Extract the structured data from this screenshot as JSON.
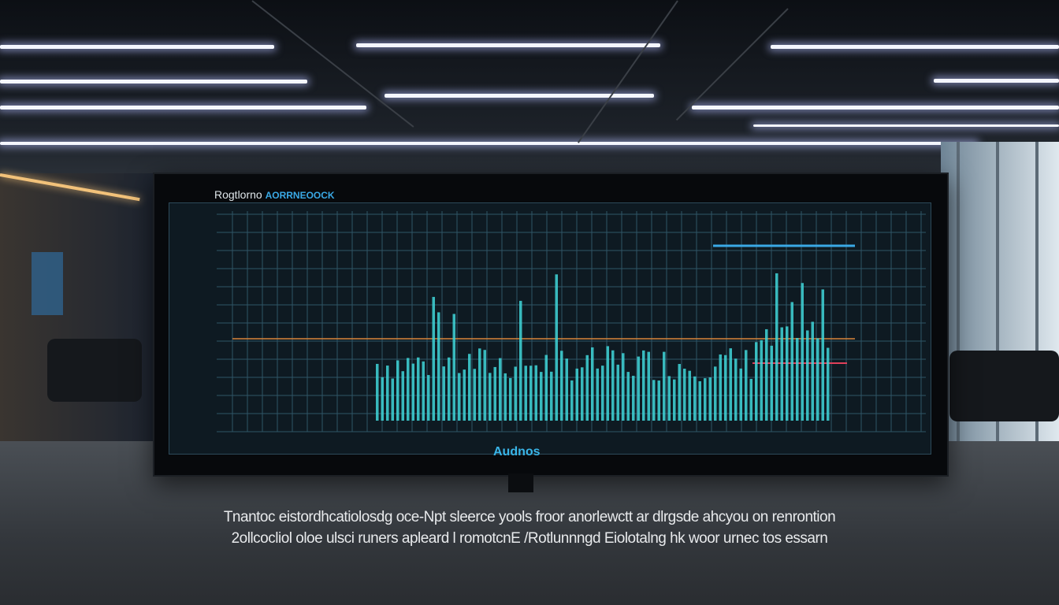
{
  "scene": {
    "monitor_title": "Rogtlorno",
    "monitor_title_accent": "AORRNEOOCK",
    "axis_label": "Audnos",
    "caption_line1": "Tnantoc eistordhcatiolosdg oce-Npt sleerce yools froor anorlewctt ar dlrgsde ahcyou on renrontion",
    "caption_line2": "2ollcocliol oloe ulsci runers apleard l romotcnE /Rotlunnngd Eiolotalng hk woor urnec tos essarn"
  },
  "colors": {
    "bar": "#3fd6d8",
    "gridline": "#2f5566",
    "orange_line": "#d8843a",
    "red_marker": "#e0405a",
    "blue_line": "#3aa9e6"
  }
}
